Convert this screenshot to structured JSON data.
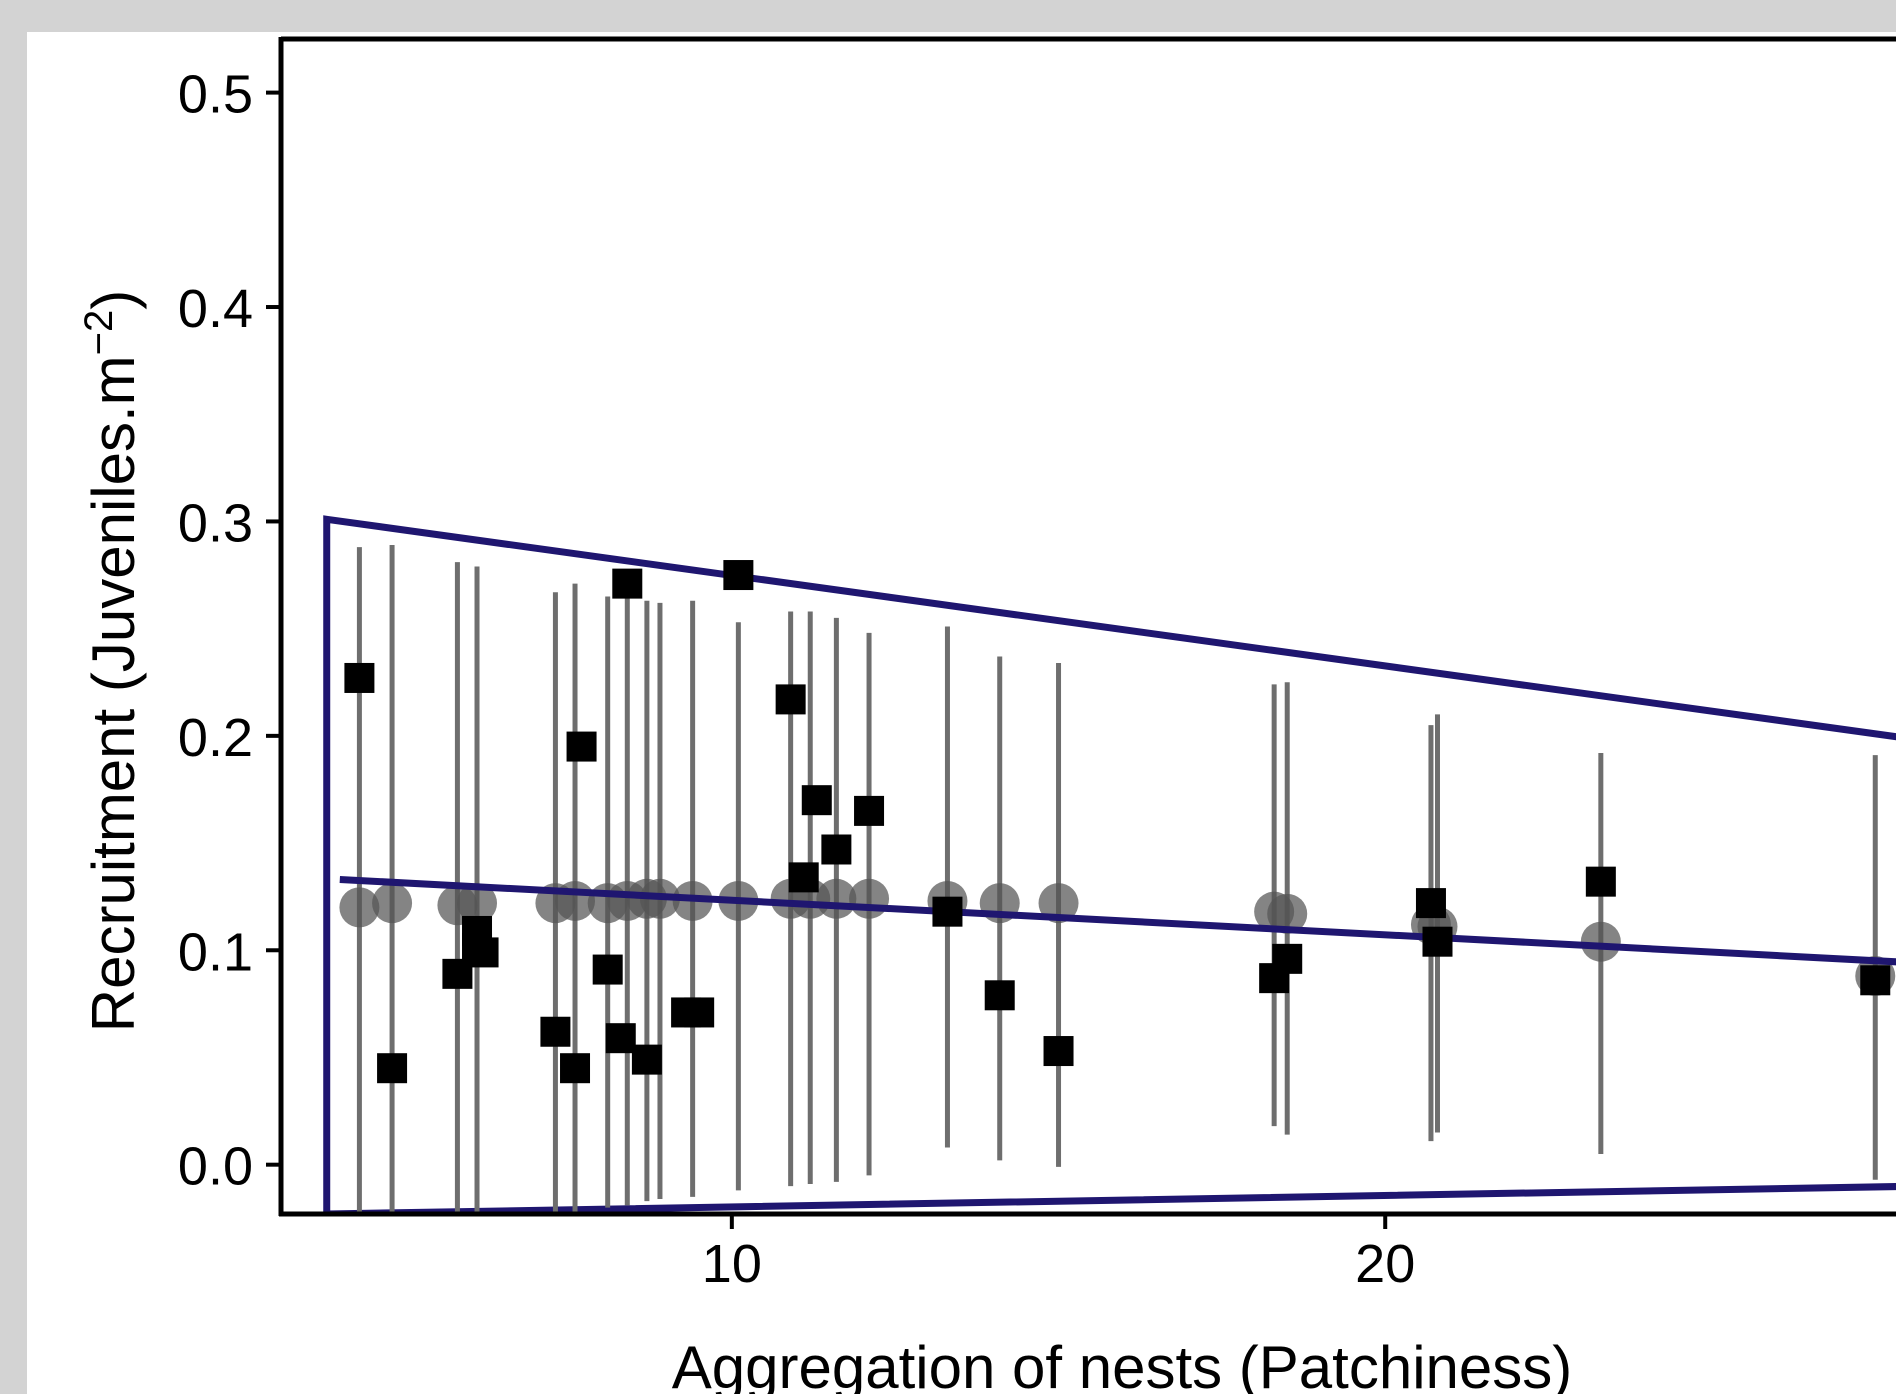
{
  "colors": {
    "background": "#d3d3d3",
    "panel": "#ffffff",
    "fit_line": "#1f1670",
    "predicted_point": "#555555",
    "interval": "#6e6e6e",
    "observed_point": "#000000"
  },
  "chart_data": {
    "type": "scatter",
    "title": "",
    "xlabel": "Aggregation of nests (Patchiness)",
    "ylabel_main": "Recruitment (Juveniles.m",
    "ylabel_sup": "−2",
    "ylabel_close": ")",
    "xlim": [
      3.1,
      28.2
    ],
    "ylim": [
      -0.023,
      0.525
    ],
    "x_ticks": [
      10,
      20
    ],
    "x_tick_labels": [
      "10",
      "20"
    ],
    "y_ticks": [
      0.0,
      0.1,
      0.2,
      0.3,
      0.4,
      0.5
    ],
    "y_tick_labels": [
      "0.0",
      "0.1",
      "0.2",
      "0.3",
      "0.4",
      "0.5"
    ],
    "grid": false,
    "legend": false,
    "fit": {
      "x": [
        4.0,
        28.2
      ],
      "y": [
        0.133,
        0.094
      ]
    },
    "confidence_band": {
      "upper": {
        "x": [
          3.8,
          28.2
        ],
        "y": [
          0.301,
          0.198
        ]
      },
      "lower": {
        "x": [
          3.8,
          28.2
        ],
        "y": [
          -0.023,
          -0.01
        ]
      }
    },
    "series": [
      {
        "role": "predicted",
        "x": [
          4.3,
          4.8,
          5.8,
          6.1,
          7.3,
          7.6,
          8.1,
          8.4,
          8.7,
          8.9,
          9.4,
          10.1,
          10.9,
          11.2,
          11.6,
          12.1,
          13.3,
          14.1,
          15.0,
          18.3,
          18.5,
          20.7,
          20.8,
          23.3,
          27.5
        ],
        "y": [
          0.12,
          0.122,
          0.121,
          0.122,
          0.122,
          0.123,
          0.122,
          0.123,
          0.124,
          0.124,
          0.123,
          0.123,
          0.124,
          0.124,
          0.124,
          0.124,
          0.123,
          0.122,
          0.122,
          0.118,
          0.117,
          0.112,
          0.111,
          0.104,
          0.088
        ],
        "lower": [
          -0.022,
          -0.022,
          -0.022,
          -0.022,
          -0.022,
          -0.022,
          -0.02,
          -0.019,
          -0.017,
          -0.016,
          -0.015,
          -0.012,
          -0.01,
          -0.009,
          -0.008,
          -0.005,
          0.008,
          0.002,
          -0.001,
          0.018,
          0.014,
          0.011,
          0.015,
          0.005,
          -0.007
        ],
        "upper": [
          0.288,
          0.289,
          0.281,
          0.279,
          0.267,
          0.271,
          0.265,
          0.265,
          0.263,
          0.262,
          0.263,
          0.253,
          0.258,
          0.258,
          0.255,
          0.248,
          0.251,
          0.237,
          0.234,
          0.224,
          0.225,
          0.205,
          0.21,
          0.192,
          0.191
        ]
      },
      {
        "role": "observed",
        "x": [
          4.3,
          4.8,
          5.8,
          6.1,
          6.1,
          6.2,
          7.3,
          7.6,
          7.7,
          8.1,
          8.3,
          8.4,
          8.7,
          9.3,
          9.5,
          10.1,
          10.9,
          11.1,
          11.3,
          11.6,
          12.1,
          13.3,
          14.1,
          15.0,
          18.3,
          18.5,
          20.7,
          20.8,
          23.3,
          27.5
        ],
        "y": [
          0.227,
          0.045,
          0.089,
          0.109,
          0.101,
          0.099,
          0.062,
          0.045,
          0.195,
          0.091,
          0.059,
          0.271,
          0.049,
          0.071,
          0.071,
          0.275,
          0.217,
          0.134,
          0.17,
          0.147,
          0.165,
          0.118,
          0.079,
          0.053,
          0.087,
          0.096,
          0.122,
          0.104,
          0.132,
          0.086
        ]
      }
    ]
  }
}
